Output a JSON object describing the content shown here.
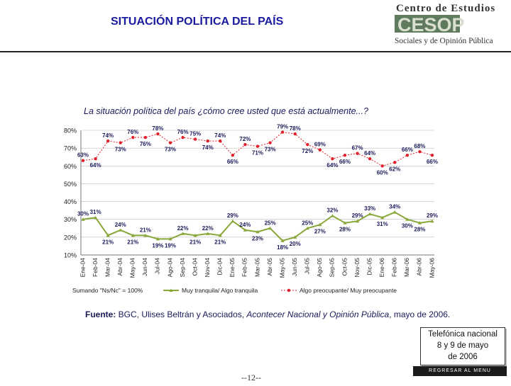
{
  "header": {
    "title": "SITUACIÓN POLÍTICA DEL PAÍS",
    "logo_line1": "Centro de Estudios",
    "logo_word": "CESOP",
    "logo_line2": "Sociales y de Opinión Pública"
  },
  "question": "La situación política del país ¿cómo cree usted que está actualmente...?",
  "chart_data": {
    "type": "line",
    "title": "La situación política del país ¿cómo cree usted que está actualmente...?",
    "categories": [
      "Ene-04",
      "Feb-04",
      "Mar-04",
      "Abr-04",
      "May-04",
      "Jun-04",
      "Jul-04",
      "Ago-04",
      "Sep-04",
      "Oct-04",
      "Nov-04",
      "Dic-04",
      "Ene-05",
      "Feb-05",
      "Mar-05",
      "Abr-05",
      "May-05",
      "Jun-05",
      "Jul-05",
      "Ago-05",
      "Sep-05",
      "Oct-05",
      "Nov-05",
      "Dic-05",
      "Ene-06",
      "Feb-06",
      "Mar-06",
      "Abr-06",
      "May-06"
    ],
    "tick_labels": [
      "Ene-04",
      "Feb-04",
      "Mar-04",
      "Abr-04",
      "May-04",
      "Jun-04",
      "Jul-04",
      "Ago-04",
      "Sep-04",
      "Oct-04",
      "Nov-04",
      "Dic-04",
      "Ene-05",
      "Feb-05",
      "Mar-05",
      "Abr-05",
      "May-05",
      "Jun-05",
      "Jul-05",
      "Ago-05",
      "Sep-05",
      "Oct-05",
      "Nov-05",
      "Dic-05",
      "Ene-06",
      "Feb-06",
      "Mar-06",
      "Abr-06",
      "May-06"
    ],
    "ylim": [
      10,
      80
    ],
    "yticks": [
      "80%",
      "70%",
      "60%",
      "50%",
      "40%",
      "30%",
      "20%",
      "10%"
    ],
    "ytick_values": [
      80,
      70,
      60,
      50,
      40,
      30,
      20,
      10
    ],
    "series": [
      {
        "name": "Algo preocupante/ Muy preocupante",
        "color": "#e0202a",
        "values": [
          63,
          64,
          74,
          73,
          76,
          76,
          78,
          73,
          76,
          75,
          74,
          74,
          66,
          72,
          71,
          73,
          79,
          78,
          72,
          69,
          64,
          66,
          67,
          64,
          60,
          62,
          66,
          68,
          66
        ],
        "labels": [
          "63%",
          "64%",
          "74%",
          "73%",
          "76%",
          "76%",
          "78%",
          "73%",
          "76%",
          "75%",
          "74%",
          "74%",
          "66%",
          "72%",
          "71%",
          "73%",
          "79%",
          "78%",
          "72%",
          "69%",
          "64%",
          "66%",
          "67%",
          "64%",
          "60%",
          "62%",
          "66%",
          "68%",
          "66%"
        ]
      },
      {
        "name": "Muy tranquila/ Algo tranquila",
        "color": "#8aa83a",
        "values": [
          30,
          31,
          21,
          24,
          21,
          21,
          19,
          19,
          22,
          21,
          22,
          21,
          29,
          24,
          23,
          25,
          18,
          20,
          25,
          27,
          32,
          28,
          29,
          33,
          31,
          34,
          30,
          28,
          29
        ],
        "labels": [
          "30%",
          "31%",
          "21%",
          "24%",
          "21%",
          "21%",
          "19%",
          "19%",
          "22%",
          "21%",
          "22%",
          "21%",
          "29%",
          "24%",
          "23%",
          "25%",
          "18%",
          "20%",
          "25%",
          "27%",
          "32%",
          "28%",
          "29%",
          "33%",
          "31%",
          "34%",
          "30%",
          "28%",
          "29%"
        ]
      }
    ],
    "note": "Sumando \"Ns/Nc\" = 100%",
    "legend_position": "bottom"
  },
  "source": {
    "label": "Fuente:",
    "text1": " BGC, Ulises Beltrán y Asociados, ",
    "publication": "Acontecer Nacional y Opinión Pública",
    "text2": ", mayo de 2006."
  },
  "callout": {
    "line1": "Telefónica nacional",
    "line2": "8 y 9 de mayo",
    "line3": "de 2006"
  },
  "footer": {
    "page": "--12--",
    "back_button": "REGRESAR AL MENU PRINCIPAL"
  }
}
